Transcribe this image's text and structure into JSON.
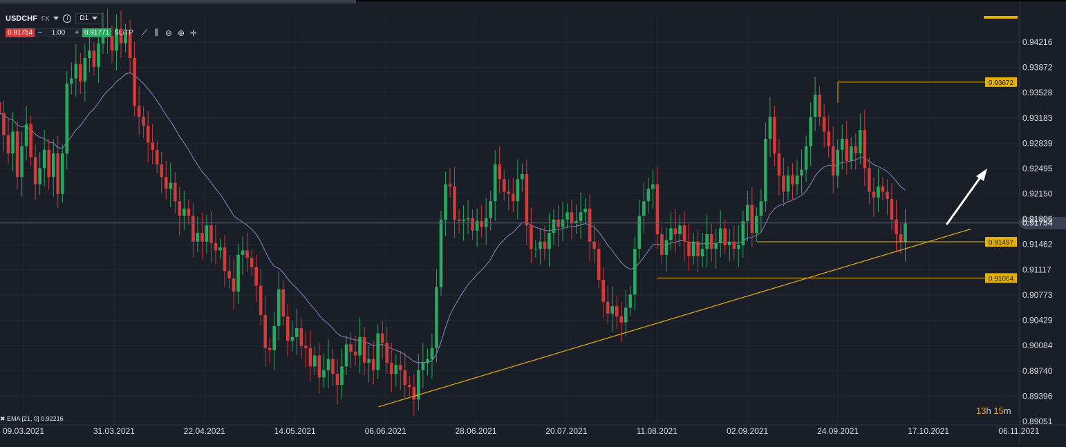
{
  "toolbar": {
    "symbol": "USDCHF",
    "instrument_type": "FX",
    "timeframe": "D1",
    "sell_price": "0.91754",
    "quantity": "1.00",
    "buy_price": "0.91771",
    "sltp_label": "SL/TP",
    "minus": "–",
    "plus": "+",
    "info": "i"
  },
  "indicator_legend": "✖ EMA [21, 0] 0.92216",
  "countdown": {
    "h": "13",
    "h_unit": "h",
    "m": "15",
    "m_unit": "m"
  },
  "colors": {
    "background": "#1a1e27",
    "bull": "#2aa85f",
    "bear": "#d33a3a",
    "ema": "#7d80b4",
    "drawing": "#e5b100",
    "price_line": "#5c6372"
  },
  "chart_data": {
    "type": "candlestick",
    "symbol": "USDCHF",
    "timeframe": "D1",
    "x_ticks": [
      "09.03.2021",
      "31.03.2021",
      "22.04.2021",
      "14.05.2021",
      "06.06.2021",
      "28.06.2021",
      "20.07.2021",
      "11.08.2021",
      "02.09.2021",
      "24.09.2021",
      "17.10.2021",
      "06.11.2021"
    ],
    "y_ticks": [
      "0.94216",
      "0.93872",
      "0.93528",
      "0.93183",
      "0.92839",
      "0.92495",
      "0.92150",
      "0.91806",
      "0.91462",
      "0.91117",
      "0.90773",
      "0.90429",
      "0.90084",
      "0.89740",
      "0.89396",
      "0.89051"
    ],
    "ylim": [
      0.89051,
      0.94216
    ],
    "current_price": "0.91754",
    "ema": {
      "period": 21,
      "last_value": 0.92216
    },
    "levels": [
      "0.93672",
      "0.91497",
      "0.91004"
    ],
    "trendline": {
      "from": [
        "06.06.2021",
        0.8925
      ],
      "to": [
        "06.11.2021",
        0.9167
      ]
    },
    "closes": [
      0.9325,
      0.9295,
      0.927,
      0.93,
      0.9238,
      0.928,
      0.931,
      0.9265,
      0.9228,
      0.925,
      0.9275,
      0.9238,
      0.927,
      0.9215,
      0.927,
      0.9365,
      0.9372,
      0.9392,
      0.9368,
      0.94,
      0.941,
      0.9388,
      0.942,
      0.944,
      0.943,
      0.941,
      0.944,
      0.942,
      0.9435,
      0.94,
      0.9335,
      0.932,
      0.9308,
      0.9285,
      0.9275,
      0.9255,
      0.9238,
      0.9222,
      0.923,
      0.9205,
      0.9185,
      0.9195,
      0.9185,
      0.915,
      0.9162,
      0.915,
      0.9172,
      0.9148,
      0.9138,
      0.9142,
      0.911,
      0.91,
      0.9082,
      0.9132,
      0.9138,
      0.9128,
      0.9115,
      0.909,
      0.905,
      0.9005,
      0.9002,
      0.9035,
      0.9085,
      0.9048,
      0.9015,
      0.902,
      0.9032,
      0.9008,
      0.9005,
      0.898,
      0.8995,
      0.8965,
      0.8975,
      0.899,
      0.897,
      0.8955,
      0.898,
      0.901,
      0.9,
      0.8995,
      0.902,
      0.8985,
      0.899,
      0.8975,
      0.9025,
      0.9012,
      0.8985,
      0.897,
      0.8982,
      0.8975,
      0.8955,
      0.8952,
      0.8935,
      0.8975,
      0.8985,
      0.899,
      0.9005,
      0.9088,
      0.918,
      0.9228,
      0.9225,
      0.918,
      0.9178,
      0.918,
      0.9182,
      0.9165,
      0.9178,
      0.917,
      0.9182,
      0.9205,
      0.9255,
      0.9235,
      0.9218,
      0.9215,
      0.9205,
      0.9235,
      0.9242,
      0.9172,
      0.914,
      0.914,
      0.915,
      0.914,
      0.9162,
      0.918,
      0.917,
      0.918,
      0.919,
      0.9175,
      0.9178,
      0.919,
      0.9195,
      0.915,
      0.914,
      0.9098,
      0.9068,
      0.9052,
      0.9062,
      0.9048,
      0.904,
      0.906,
      0.9078,
      0.914,
      0.9185,
      0.9205,
      0.9222,
      0.9228,
      0.916,
      0.9132,
      0.9152,
      0.9168,
      0.916,
      0.9172,
      0.915,
      0.913,
      0.915,
      0.913,
      0.914,
      0.916,
      0.914,
      0.9148,
      0.9168,
      0.9145,
      0.915,
      0.914,
      0.9145,
      0.9178,
      0.92,
      0.9162,
      0.9185,
      0.9205,
      0.929,
      0.932,
      0.927,
      0.924,
      0.9218,
      0.924,
      0.9228,
      0.924,
      0.9248,
      0.928,
      0.932,
      0.935,
      0.932,
      0.93,
      0.928,
      0.924,
      0.9275,
      0.929,
      0.926,
      0.928,
      0.927,
      0.9302,
      0.925,
      0.9218,
      0.921,
      0.9225,
      0.9218,
      0.9208,
      0.918,
      0.916,
      0.915,
      0.9175
    ]
  }
}
